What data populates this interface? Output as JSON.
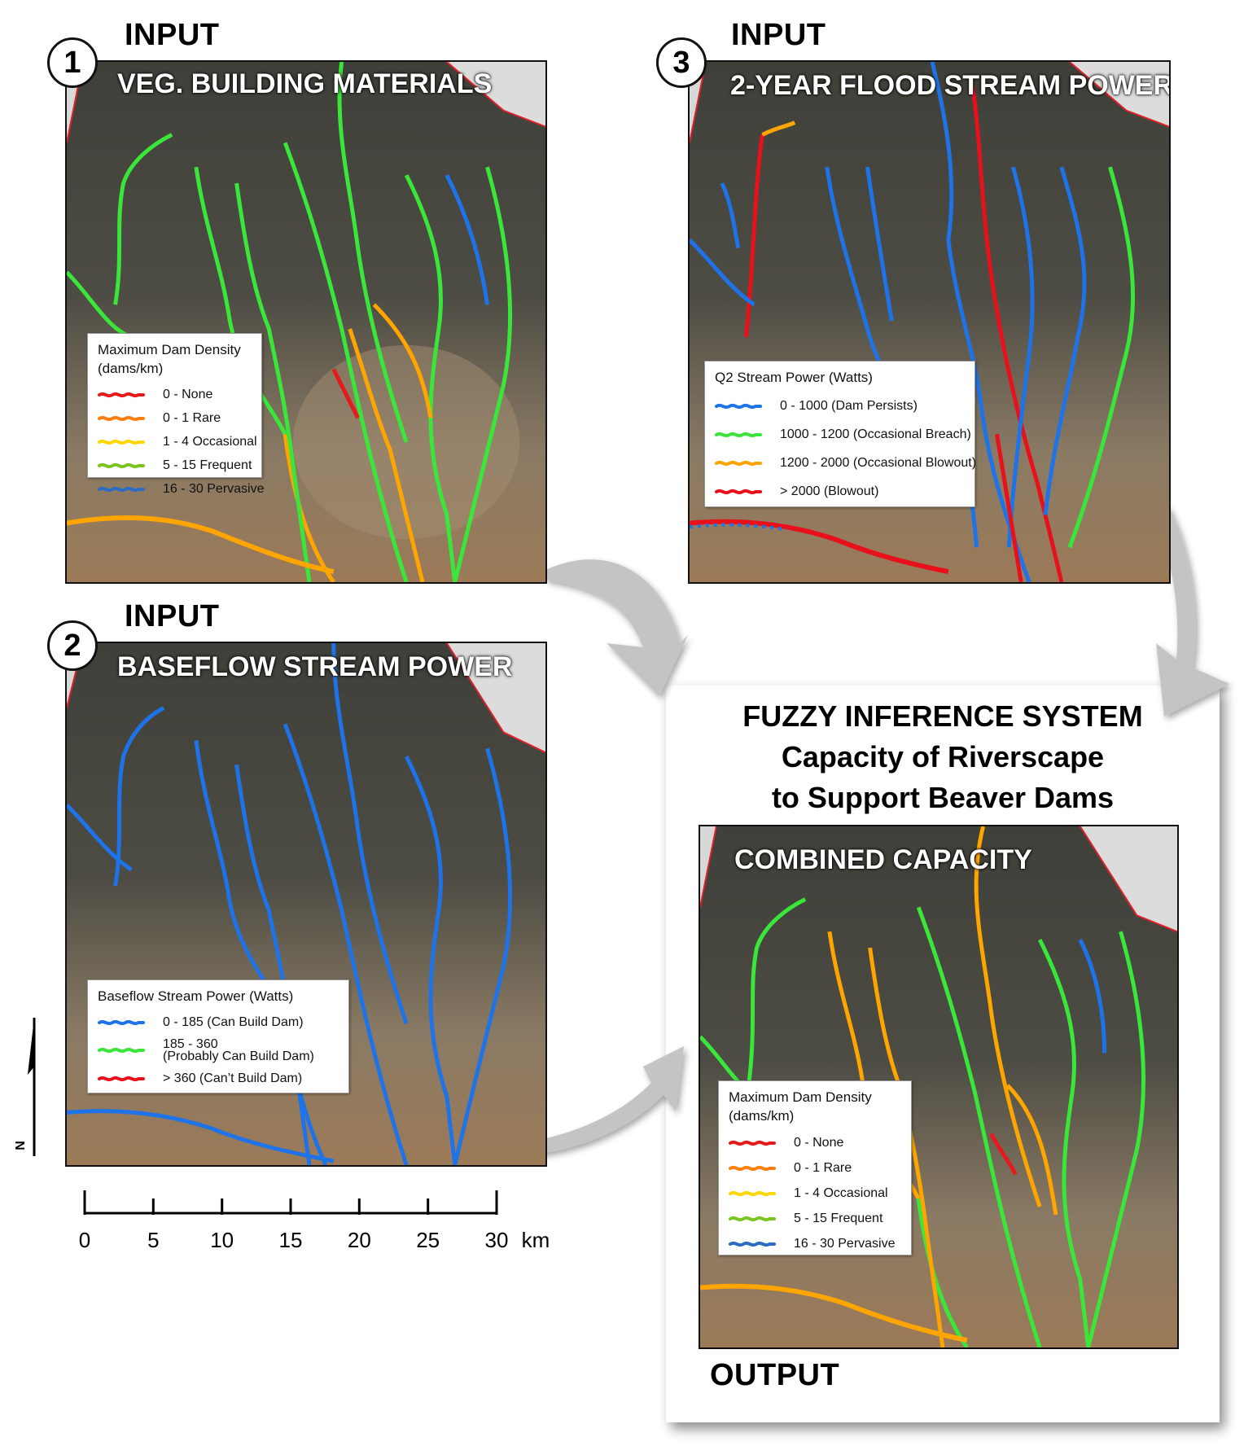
{
  "panels": {
    "veg": {
      "heading": "INPUT",
      "number": "1",
      "title": "VEG. BUILDING MATERIALS",
      "legend": {
        "title": "Maximum Dam Density\n(dams/km)",
        "items": [
          {
            "label": "0 - None",
            "color": "#e41a1c"
          },
          {
            "label": "0 - 1 Rare",
            "color": "#ff7f0e"
          },
          {
            "label": "1 - 4 Occasional",
            "color": "#ffd700"
          },
          {
            "label": "5 - 15 Frequent",
            "color": "#7cc41f"
          },
          {
            "label": "16 - 30 Pervasive",
            "color": "#2b6cc4"
          }
        ]
      }
    },
    "baseflow": {
      "heading": "INPUT",
      "number": "2",
      "title": "BASEFLOW STREAM POWER",
      "legend": {
        "title": "Baseflow Stream Power (Watts)",
        "items": [
          {
            "label": "0 - 185 (Can Build Dam)",
            "color": "#1e73e8"
          },
          {
            "label": "185 - 360",
            "label2": "(Probably Can Build Dam)",
            "color": "#39e639"
          },
          {
            "label": "> 360 (Can’t Build Dam)",
            "color": "#e8101a"
          }
        ]
      }
    },
    "flood": {
      "heading": "INPUT",
      "number": "3",
      "title": "2-YEAR FLOOD STREAM POWER",
      "legend": {
        "title": "Q2 Stream Power (Watts)",
        "items": [
          {
            "label": "0 - 1000 (Dam Persists)",
            "color": "#1e73e8"
          },
          {
            "label": "1000 - 1200 (Occasional Breach)",
            "color": "#39e639"
          },
          {
            "label": "1200 - 2000 (Occasional Blowout)",
            "color": "#ffa500"
          },
          {
            "label": "> 2000 (Blowout)",
            "color": "#e8101a"
          }
        ]
      }
    },
    "combined": {
      "title": "COMBINED CAPACITY",
      "footer": "OUTPUT",
      "fis_lines": [
        "FUZZY INFERENCE SYSTEM",
        "Capacity of Riverscape",
        "to Support Beaver Dams"
      ],
      "legend": {
        "title": "Maximum Dam Density\n(dams/km)",
        "items": [
          {
            "label": "0 - None",
            "color": "#e41a1c"
          },
          {
            "label": "0 - 1 Rare",
            "color": "#ff7f0e"
          },
          {
            "label": "1 - 4 Occasional",
            "color": "#ffd700"
          },
          {
            "label": "5 - 15 Frequent",
            "color": "#7cc41f"
          },
          {
            "label": "16 - 30 Pervasive",
            "color": "#2b6cc4"
          }
        ]
      }
    }
  },
  "scale_bar": {
    "ticks": [
      "0",
      "5",
      "10",
      "15",
      "20",
      "25",
      "30"
    ],
    "unit": "km"
  },
  "north_arrow": {
    "label": "N"
  }
}
